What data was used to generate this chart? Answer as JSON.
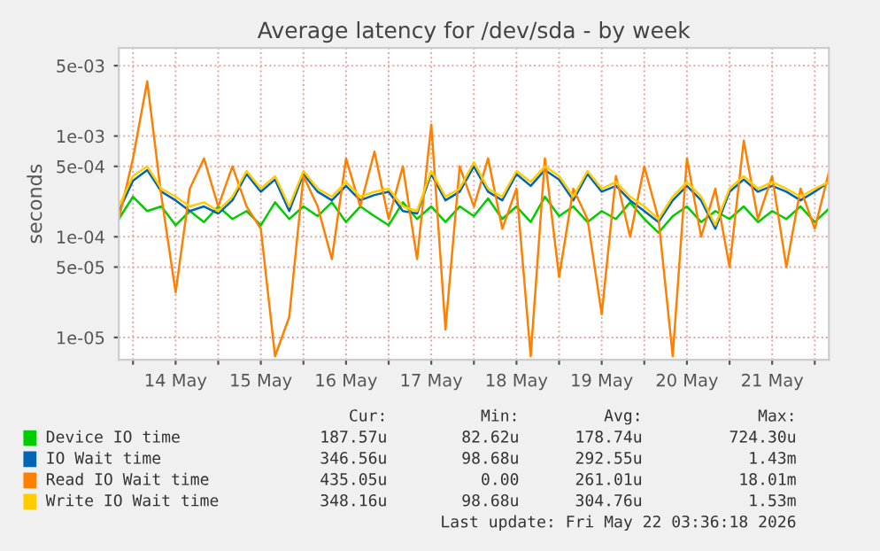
{
  "chart_data": {
    "type": "line",
    "title": "Average latency for /dev/sda - by week",
    "ylabel": "seconds",
    "log": "y",
    "grid": true,
    "legend": "bottom",
    "marker": "none",
    "line_style": "solid",
    "xlim": [
      "2026-05-13T20:00",
      "2026-05-22T04:00"
    ],
    "xticks": [
      {
        "value": "2026-05-14T00:00",
        "label": null
      },
      {
        "value": "2026-05-14T12:00",
        "label": "14 May"
      },
      {
        "value": "2026-05-15T00:00",
        "label": null
      },
      {
        "value": "2026-05-15T12:00",
        "label": "15 May"
      },
      {
        "value": "2026-05-16T00:00",
        "label": null
      },
      {
        "value": "2026-05-16T12:00",
        "label": "16 May"
      },
      {
        "value": "2026-05-17T00:00",
        "label": null
      },
      {
        "value": "2026-05-17T12:00",
        "label": "17 May"
      },
      {
        "value": "2026-05-18T00:00",
        "label": null
      },
      {
        "value": "2026-05-18T12:00",
        "label": "18 May"
      },
      {
        "value": "2026-05-19T00:00",
        "label": null
      },
      {
        "value": "2026-05-19T12:00",
        "label": "19 May"
      },
      {
        "value": "2026-05-20T00:00",
        "label": null
      },
      {
        "value": "2026-05-20T12:00",
        "label": "20 May"
      },
      {
        "value": "2026-05-21T00:00",
        "label": null
      },
      {
        "value": "2026-05-21T12:00",
        "label": "21 May"
      },
      {
        "value": "2026-05-22T00:00",
        "label": null
      }
    ],
    "ylim": [
      6e-06,
      0.0075
    ],
    "yticks": [
      {
        "value": 1e-05,
        "label": "1e-05"
      },
      {
        "value": 5e-05,
        "label": "5e-05"
      },
      {
        "value": 0.0001,
        "label": "1e-04"
      },
      {
        "value": 0.0005,
        "label": "5e-04"
      },
      {
        "value": 0.001,
        "label": "1e-03"
      },
      {
        "value": 0.005,
        "label": "5e-03"
      }
    ],
    "x": [
      "2026-05-13T20:00",
      "2026-05-14T00:00",
      "2026-05-14T04:00",
      "2026-05-14T08:00",
      "2026-05-14T12:00",
      "2026-05-14T16:00",
      "2026-05-14T20:00",
      "2026-05-15T00:00",
      "2026-05-15T04:00",
      "2026-05-15T08:00",
      "2026-05-15T12:00",
      "2026-05-15T16:00",
      "2026-05-15T20:00",
      "2026-05-16T00:00",
      "2026-05-16T04:00",
      "2026-05-16T08:00",
      "2026-05-16T12:00",
      "2026-05-16T16:00",
      "2026-05-16T20:00",
      "2026-05-17T00:00",
      "2026-05-17T04:00",
      "2026-05-17T08:00",
      "2026-05-17T12:00",
      "2026-05-17T16:00",
      "2026-05-17T20:00",
      "2026-05-18T00:00",
      "2026-05-18T04:00",
      "2026-05-18T08:00",
      "2026-05-18T12:00",
      "2026-05-18T16:00",
      "2026-05-18T20:00",
      "2026-05-19T00:00",
      "2026-05-19T04:00",
      "2026-05-19T08:00",
      "2026-05-19T12:00",
      "2026-05-19T16:00",
      "2026-05-19T20:00",
      "2026-05-20T00:00",
      "2026-05-20T04:00",
      "2026-05-20T08:00",
      "2026-05-20T12:00",
      "2026-05-20T16:00",
      "2026-05-20T20:00",
      "2026-05-21T00:00",
      "2026-05-21T04:00",
      "2026-05-21T08:00",
      "2026-05-21T12:00",
      "2026-05-21T16:00",
      "2026-05-21T20:00",
      "2026-05-22T00:00",
      "2026-05-22T04:00"
    ],
    "series": [
      {
        "name": "Device IO time",
        "color": "#00cc00",
        "values": [
          0.00015,
          0.00025,
          0.00018,
          0.0002,
          0.00013,
          0.00018,
          0.00014,
          0.0002,
          0.00015,
          0.00018,
          0.00013,
          0.00022,
          0.00015,
          0.0002,
          0.00016,
          0.00022,
          0.00014,
          0.0002,
          0.00016,
          0.00013,
          0.00022,
          0.00015,
          0.0002,
          0.00014,
          0.0002,
          0.00016,
          0.00024,
          0.00015,
          0.0002,
          0.00014,
          0.00025,
          0.00016,
          0.0002,
          0.00014,
          0.00018,
          0.00015,
          0.00022,
          0.00015,
          0.00011,
          0.00016,
          0.0002,
          0.00014,
          0.00018,
          0.00015,
          0.0002,
          0.00014,
          0.00018,
          0.00015,
          0.0002,
          0.00014,
          0.00019
        ]
      },
      {
        "name": "IO Wait time",
        "color": "#0066b3",
        "values": [
          0.00018,
          0.00036,
          0.00046,
          0.00028,
          0.00023,
          0.00018,
          0.0002,
          0.00017,
          0.00023,
          0.00042,
          0.00028,
          0.00037,
          0.00018,
          0.00042,
          0.00028,
          0.00023,
          0.00032,
          0.00023,
          0.00026,
          0.00028,
          0.00018,
          0.00017,
          0.00042,
          0.00023,
          0.00028,
          0.0005,
          0.00028,
          0.00023,
          0.00042,
          0.00032,
          0.00046,
          0.00037,
          0.00023,
          0.00042,
          0.00028,
          0.00032,
          0.00023,
          0.00018,
          0.00014,
          0.00023,
          0.00032,
          0.00023,
          0.00012,
          0.00028,
          0.00037,
          0.00028,
          0.00032,
          0.00028,
          0.00023,
          0.00028,
          0.00035
        ]
      },
      {
        "name": "Read IO Wait time",
        "color": "#ff8000",
        "values": [
          0.00015,
          0.0006,
          0.0035,
          0.00025,
          2.8e-05,
          0.0003,
          0.0006,
          0.0002,
          0.0005,
          0.0002,
          0.00012,
          6.5e-06,
          1.6e-05,
          0.0004,
          0.0002,
          6e-05,
          0.0006,
          0.0002,
          0.0007,
          0.00015,
          0.0005,
          6e-05,
          0.0013,
          1.2e-05,
          0.0005,
          0.0002,
          0.0006,
          0.00012,
          0.0003,
          6.5e-06,
          0.0006,
          4e-05,
          0.0003,
          0.00015,
          1.7e-05,
          0.0004,
          0.0001,
          0.0005,
          0.00015,
          6.5e-06,
          0.0006,
          0.0001,
          0.0003,
          5e-05,
          0.0009,
          0.00015,
          0.0004,
          5e-05,
          0.0003,
          0.00012,
          0.00044
        ]
      },
      {
        "name": "Write IO Wait time",
        "color": "#ffcc00",
        "values": [
          0.0002,
          0.0004,
          0.0005,
          0.0003,
          0.00025,
          0.0002,
          0.00022,
          0.00018,
          0.00025,
          0.00045,
          0.0003,
          0.0004,
          0.0002,
          0.00045,
          0.0003,
          0.00025,
          0.00035,
          0.00025,
          0.00028,
          0.0003,
          0.0002,
          0.00018,
          0.00045,
          0.00025,
          0.0003,
          0.00055,
          0.0003,
          0.00025,
          0.00045,
          0.00035,
          0.0005,
          0.0004,
          0.00025,
          0.00045,
          0.0003,
          0.00035,
          0.00025,
          0.0002,
          0.00015,
          0.00025,
          0.00035,
          0.00025,
          0.00013,
          0.0003,
          0.0004,
          0.0003,
          0.00035,
          0.0003,
          0.00025,
          0.0003,
          0.00035
        ]
      }
    ],
    "annotations": [
      "Cur:",
      "Min:",
      "Avg:",
      "Max:",
      "187.57u",
      "82.62u",
      "178.74u",
      "724.30u",
      "346.56u",
      "98.68u",
      "292.55u",
      "1.43m",
      "435.05u",
      "0.00",
      "261.01u",
      "18.01m",
      "348.16u",
      "98.68u",
      "304.76u",
      "1.53m",
      "Last update: Fri May 22 03:36:18 2026"
    ]
  }
}
